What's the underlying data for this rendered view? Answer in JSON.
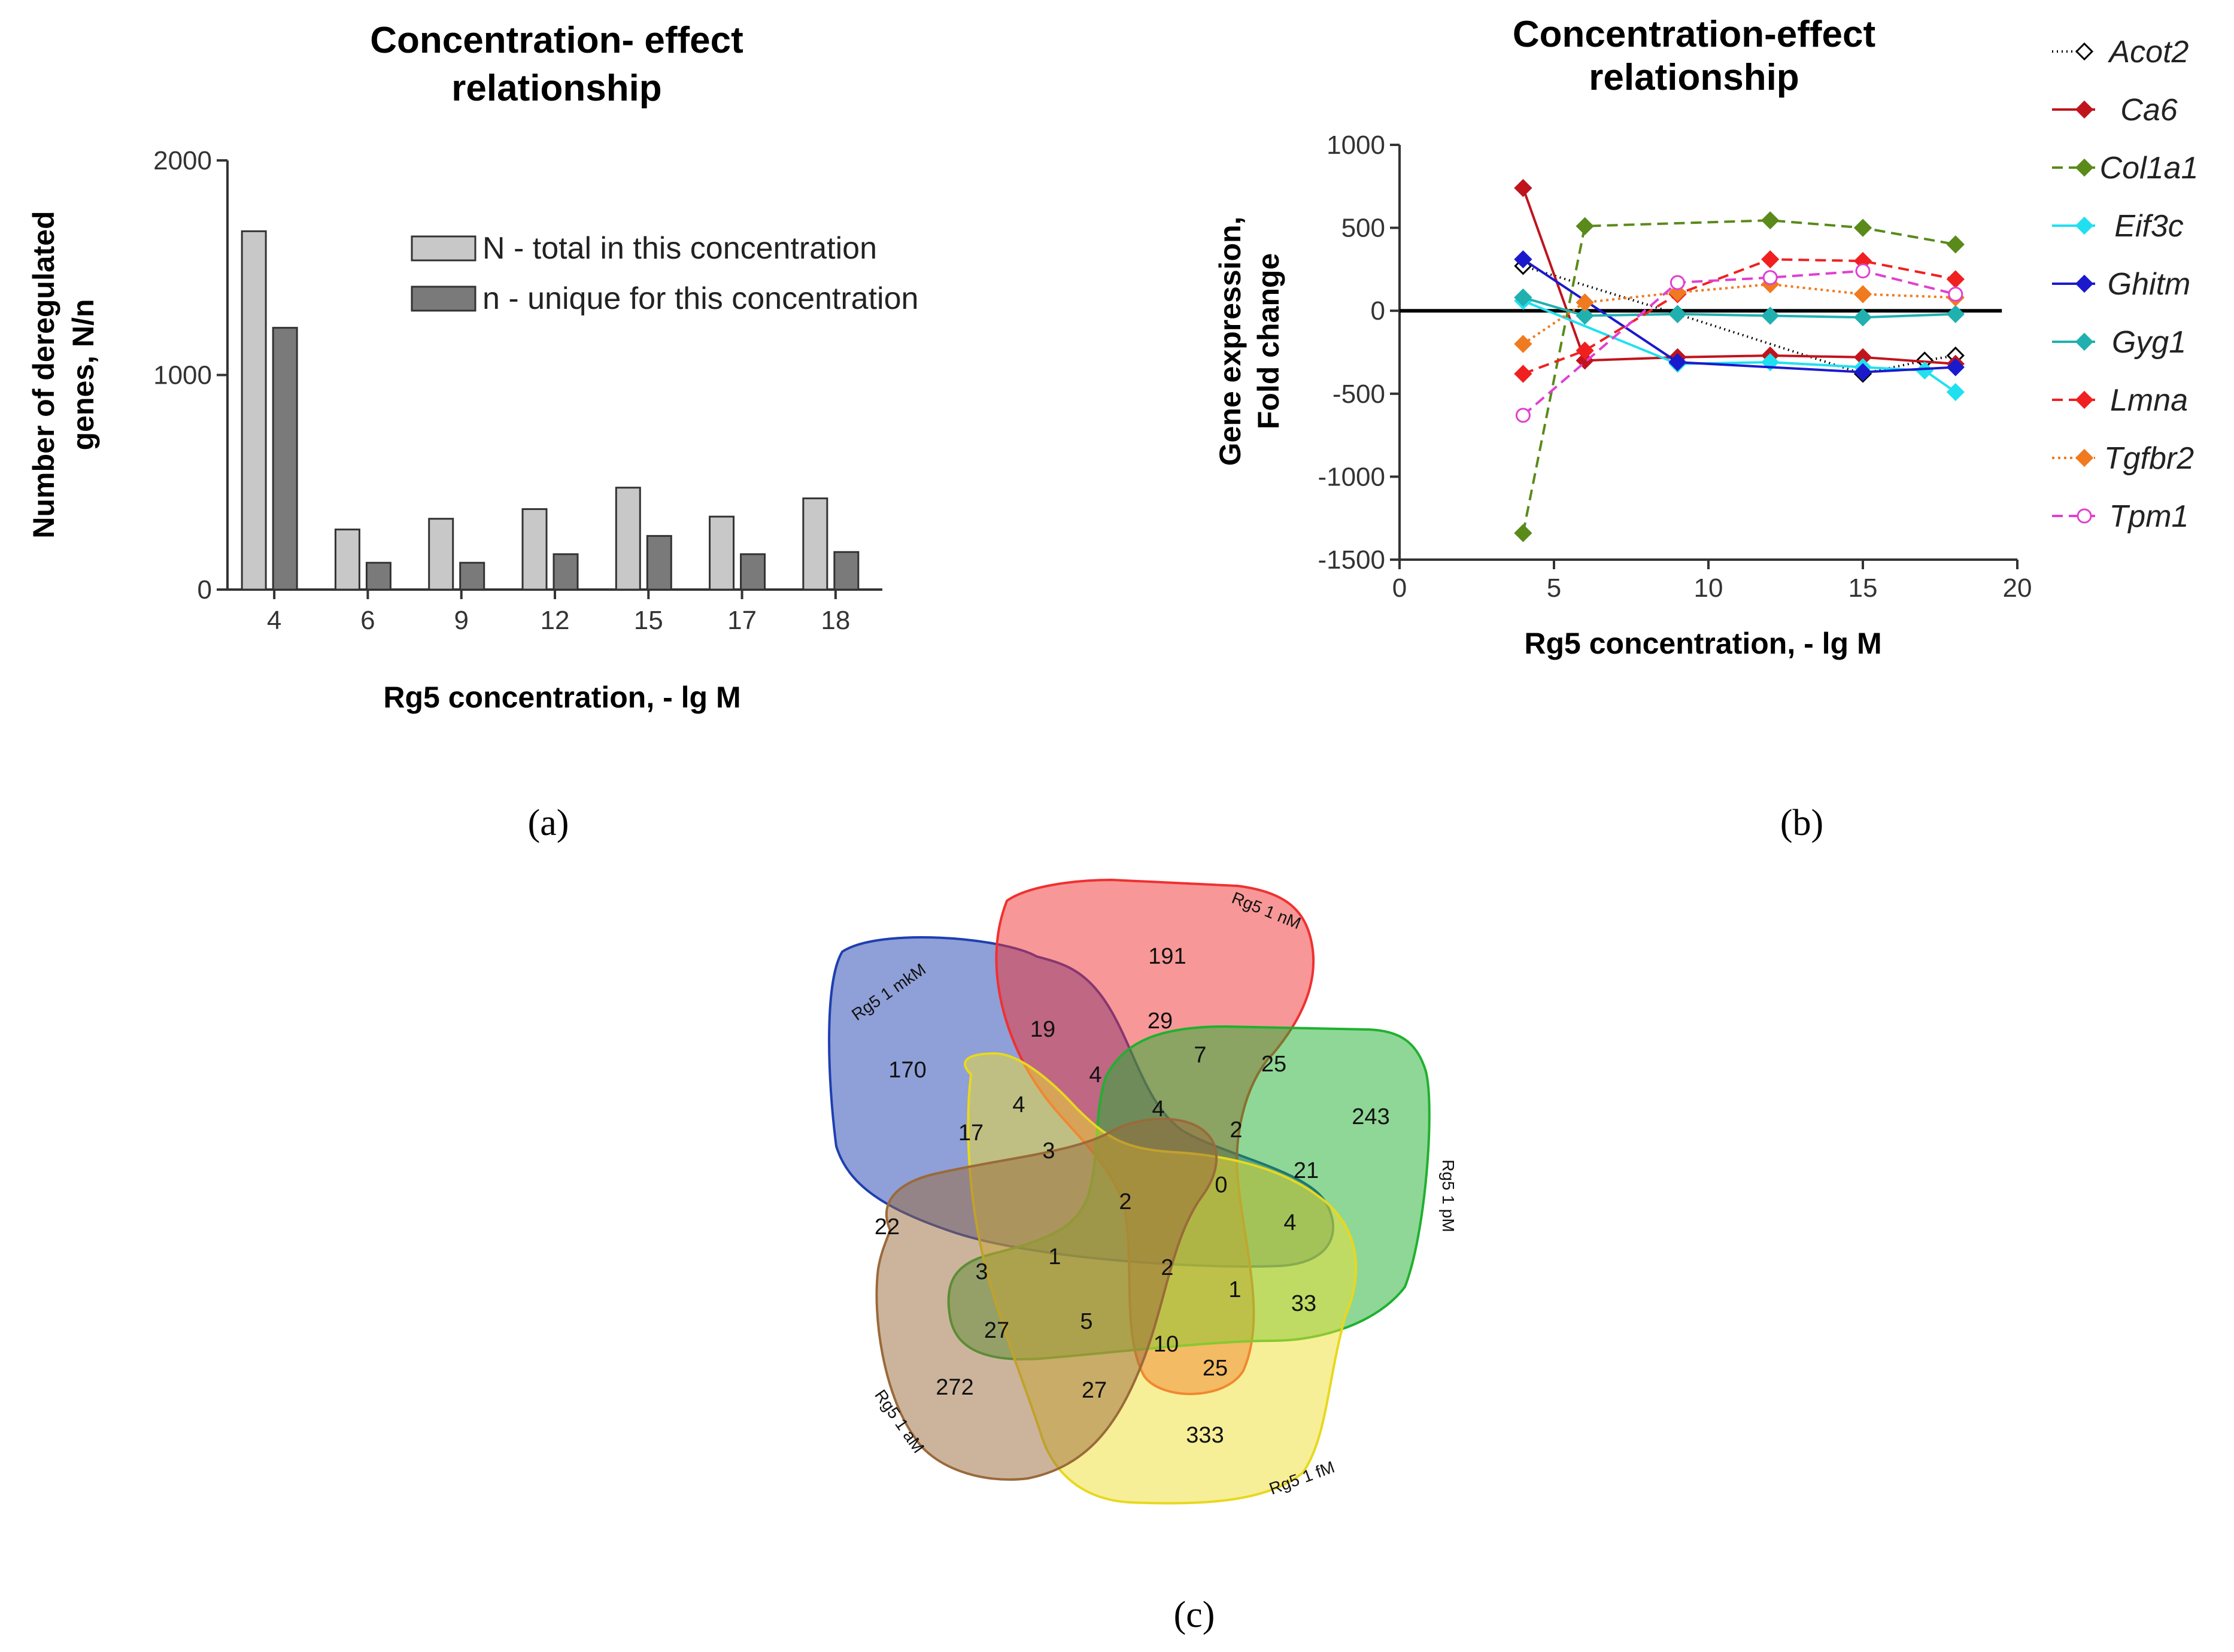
{
  "chart_data": [
    {
      "type": "bar",
      "title_lines": [
        "Concentration- effect",
        "relationship"
      ],
      "xlabel": "Rg5 concentration, - lg M",
      "ylabel_lines": [
        "Number of deregulated",
        "genes, N/n"
      ],
      "categories": [
        "4",
        "6",
        "9",
        "12",
        "15",
        "17",
        "18"
      ],
      "ylim": [
        0,
        2000
      ],
      "yticks": [
        "0",
        "1000",
        "2000"
      ],
      "legend_position": "top-right",
      "series": [
        {
          "name": "N - total in this concentration",
          "color": "#c8c8c8",
          "values": [
            1670,
            280,
            330,
            375,
            475,
            340,
            425
          ]
        },
        {
          "name": "n - unique for this concentration",
          "color": "#7a7a7a",
          "values": [
            1220,
            125,
            125,
            165,
            250,
            165,
            175
          ]
        }
      ],
      "panel_label": "(a)"
    },
    {
      "type": "line",
      "title_lines": [
        "Concentration-effect",
        "relationship"
      ],
      "xlabel": "Rg5 concentration, - lg M",
      "ylabel_lines": [
        "Gene expression,",
        "Fold change"
      ],
      "xlim": [
        0,
        20
      ],
      "ylim": [
        -1500,
        1000
      ],
      "xticks": [
        "0",
        "5",
        "10",
        "15",
        "20"
      ],
      "yticks": [
        "-1500",
        "-1000",
        "-500",
        "0",
        "500",
        "1000"
      ],
      "legend_position": "right",
      "series": [
        {
          "name": "Acot2",
          "color": "#000000",
          "dash": "2,6",
          "marker": "diamond-open",
          "x": [
            4,
            9,
            15,
            17,
            18
          ],
          "y": [
            270,
            -20,
            -380,
            -300,
            -270
          ]
        },
        {
          "name": "Ca6",
          "color": "#c0141c",
          "dash": "",
          "marker": "diamond",
          "x": [
            4,
            6,
            9,
            12,
            15,
            18
          ],
          "y": [
            740,
            -300,
            -280,
            -270,
            -280,
            -320
          ]
        },
        {
          "name": "Col1a1",
          "color": "#5a8a1a",
          "dash": "18,10",
          "marker": "diamond",
          "x": [
            4,
            6,
            12,
            15,
            18
          ],
          "y": [
            -1340,
            510,
            545,
            500,
            400
          ]
        },
        {
          "name": "Eif3c",
          "color": "#20e0f0",
          "dash": "",
          "marker": "diamond",
          "x": [
            4,
            9,
            12,
            15,
            17,
            18
          ],
          "y": [
            60,
            -320,
            -310,
            -340,
            -360,
            -490
          ]
        },
        {
          "name": "Ghitm",
          "color": "#1a1acc",
          "dash": "",
          "marker": "diamond",
          "x": [
            4,
            9,
            15,
            18
          ],
          "y": [
            310,
            -310,
            -370,
            -340
          ]
        },
        {
          "name": "Gyg1",
          "color": "#20b0b0",
          "dash": "",
          "marker": "diamond",
          "x": [
            4,
            6,
            9,
            12,
            15,
            18
          ],
          "y": [
            80,
            -30,
            -20,
            -30,
            -40,
            -20
          ]
        },
        {
          "name": "Lmna",
          "color": "#f02020",
          "dash": "18,10",
          "marker": "diamond",
          "x": [
            4,
            6,
            9,
            12,
            15,
            18
          ],
          "y": [
            -380,
            -240,
            100,
            310,
            300,
            190
          ]
        },
        {
          "name": "Tgfbr2",
          "color": "#f07a20",
          "dash": "4,6",
          "marker": "diamond",
          "x": [
            4,
            6,
            9,
            12,
            15,
            18
          ],
          "y": [
            -200,
            50,
            110,
            160,
            100,
            80
          ]
        },
        {
          "name": "Tpm1",
          "color": "#e040d0",
          "dash": "18,10",
          "marker": "circle-open",
          "x": [
            4,
            9,
            12,
            15,
            18
          ],
          "y": [
            -630,
            170,
            200,
            240,
            100
          ]
        }
      ],
      "panel_label": "(b)"
    },
    {
      "type": "venn",
      "sets": [
        {
          "name": "Rg5 1 mkM",
          "color": "#1f3fb0"
        },
        {
          "name": "Rg5 1 nM",
          "color": "#f03030"
        },
        {
          "name": "Rg5 1 pM",
          "color": "#20b030"
        },
        {
          "name": "Rg5 1 fM",
          "color": "#f0e030"
        },
        {
          "name": "Rg5 1 aM",
          "color": "#9a6a3a"
        }
      ],
      "counts": [
        "170",
        "191",
        "243",
        "333",
        "272",
        "19",
        "29",
        "7",
        "25",
        "4",
        "4",
        "17",
        "3",
        "4",
        "2",
        "21",
        "0",
        "4",
        "22",
        "3",
        "1",
        "2",
        "2",
        "1",
        "33",
        "27",
        "5",
        "10",
        "25",
        "27"
      ],
      "panel_label": "(c)"
    }
  ]
}
